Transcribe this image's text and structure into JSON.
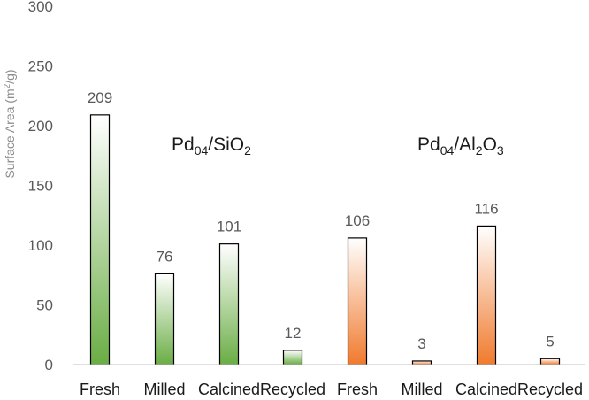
{
  "chart_data": {
    "type": "bar",
    "title": "",
    "xlabel": "",
    "ylabel_text": "Surface Area (m",
    "ylabel_sup": "2",
    "ylabel_tail": "/g)",
    "ylim": [
      0,
      300
    ],
    "yticks": [
      "0",
      "50",
      "100",
      "150",
      "200",
      "250",
      "300"
    ],
    "categories": [
      "Fresh",
      "Milled",
      "Calcined",
      "Recycled",
      "Fresh",
      "Milled",
      "Calcined",
      "Recycled"
    ],
    "values": [
      209,
      76,
      101,
      12,
      106,
      3,
      116,
      5
    ],
    "value_labels": [
      "209",
      "76",
      "101",
      "12",
      "106",
      "3",
      "116",
      "5"
    ],
    "groups": [
      {
        "name": "Pd04/SiO2",
        "label": {
          "pre": "Pd",
          "sub1": "04",
          "mid": "/SiO",
          "sub2": "2",
          "mid2": "",
          "sub3": "",
          "tail": ""
        },
        "color": "#6aad45",
        "indices": [
          0,
          1,
          2,
          3
        ]
      },
      {
        "name": "Pd04/Al2O3",
        "label": {
          "pre": "Pd",
          "sub1": "04",
          "mid": "/Al",
          "sub2": "2",
          "mid2": "O",
          "sub3": "3",
          "tail": ""
        },
        "color": "#f07a2e",
        "indices": [
          4,
          5,
          6,
          7
        ]
      }
    ],
    "colors": {
      "axis": "#bfbfbf",
      "bar_edge": "#000000"
    }
  }
}
